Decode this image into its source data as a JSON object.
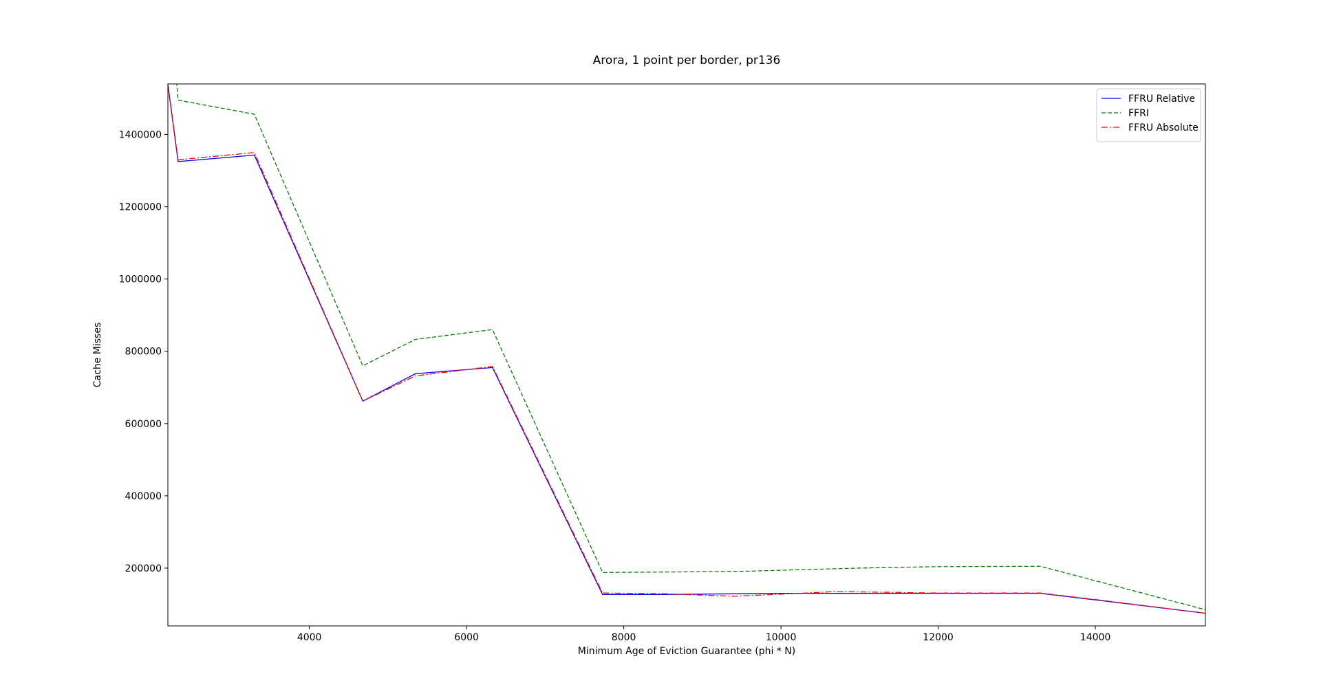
{
  "chart_data": {
    "type": "line",
    "title": "Arora, 1 point per border, pr136",
    "xlabel": "Minimum Age of Eviction Guarantee (phi * N)",
    "ylabel": "Cache Misses",
    "xlim": [
      2200,
      15400
    ],
    "ylim": [
      40000,
      1540000
    ],
    "xticks": [
      4000,
      6000,
      8000,
      10000,
      12000,
      14000
    ],
    "xtick_labels": [
      "4000",
      "6000",
      "8000",
      "10000",
      "12000",
      "14000"
    ],
    "yticks": [
      200000,
      400000,
      600000,
      800000,
      1000000,
      1200000,
      1400000
    ],
    "ytick_labels": [
      "200000",
      "400000",
      "600000",
      "800000",
      "1000000",
      "1200000",
      "1400000"
    ],
    "grid": false,
    "legend_position": "upper right",
    "series": [
      {
        "name": "FFRU Relative",
        "color": "#0000ff",
        "style": "solid",
        "x": [
          2150,
          2330,
          3300,
          4680,
          5350,
          6330,
          7730,
          8500,
          10000,
          11000,
          12000,
          13300,
          14000,
          15400
        ],
        "y": [
          1620000,
          1325000,
          1343000,
          662000,
          738000,
          755000,
          127000,
          127000,
          130000,
          130000,
          130000,
          130000,
          112000,
          75000
        ]
      },
      {
        "name": "FFRI",
        "color": "#008000",
        "style": "dashed",
        "x": [
          2250,
          2330,
          3300,
          4680,
          5350,
          6330,
          7730,
          8500,
          9500,
          10000,
          11000,
          12000,
          13300,
          14000,
          15400
        ],
        "y": [
          1700000,
          1495000,
          1456000,
          760000,
          833000,
          860000,
          188000,
          189000,
          191000,
          194000,
          200000,
          204000,
          205000,
          165000,
          85000
        ]
      },
      {
        "name": "FFRU Absolute",
        "color": "#ff0000",
        "style": "dashdot",
        "x": [
          2150,
          2330,
          3300,
          4680,
          5350,
          6330,
          7730,
          8500,
          9400,
          10000,
          10700,
          12000,
          13300,
          14000,
          15400
        ],
        "y": [
          1620000,
          1330000,
          1350000,
          662000,
          732000,
          758000,
          131000,
          129000,
          122000,
          128000,
          135000,
          131000,
          131000,
          113000,
          75000
        ]
      }
    ]
  }
}
